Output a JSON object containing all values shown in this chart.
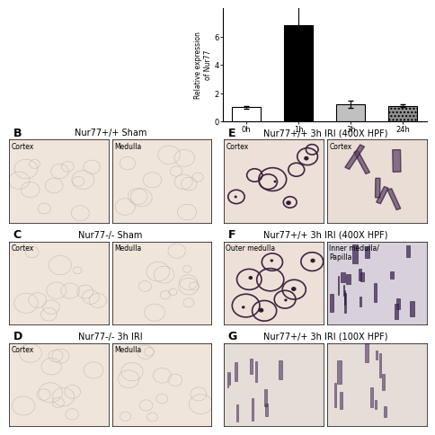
{
  "bar_categories": [
    "0h",
    "1h",
    "3h",
    "24h"
  ],
  "bar_values": [
    1.0,
    6.8,
    1.2,
    1.1
  ],
  "bar_errors": [
    0.1,
    1.9,
    0.25,
    0.12
  ],
  "bar_colors": [
    "white",
    "black",
    "#c0c0c0",
    "#909090"
  ],
  "bar_hatches": [
    null,
    null,
    null,
    "...."
  ],
  "bar_edge_colors": [
    "black",
    "black",
    "black",
    "black"
  ],
  "ylabel": "Relative expression\nof Nur77",
  "ylim": [
    0,
    8
  ],
  "yticks": [
    0,
    2,
    4,
    6
  ],
  "panel_B_title": "Nur77+/+ Sham",
  "panel_C_title": "Nur77-/- Sham",
  "panel_D_title": "Nur77-/- 3h IRI",
  "panel_E_title": "Nur77+/+ 3h IRI (400X HPF)",
  "panel_F_title": "Nur77+/+ 3h IRI (400X HPF)",
  "panel_G_title": "Nur77+/+ 3h IRI (100X HPF)",
  "sub_labels_B": [
    "Cortex",
    "Medulla"
  ],
  "sub_labels_C": [
    "Cortex",
    "Medulla"
  ],
  "sub_labels_D": [
    "Cortex",
    "Medulla"
  ],
  "sub_labels_E": [
    "Cortex",
    "Cortex"
  ],
  "sub_labels_F": [
    "Outer medulla",
    "Inner medulla/\nPapilla"
  ],
  "sub_labels_G": [
    "",
    ""
  ],
  "figure_bg": "white",
  "tissue_light": "#f0ebe3",
  "tissue_medium": "#e8e0d8",
  "tissue_stained_bg": "#f2ede8",
  "title_fontsize": 7,
  "label_fontsize": 5.5,
  "panel_letter_fontsize": 9
}
